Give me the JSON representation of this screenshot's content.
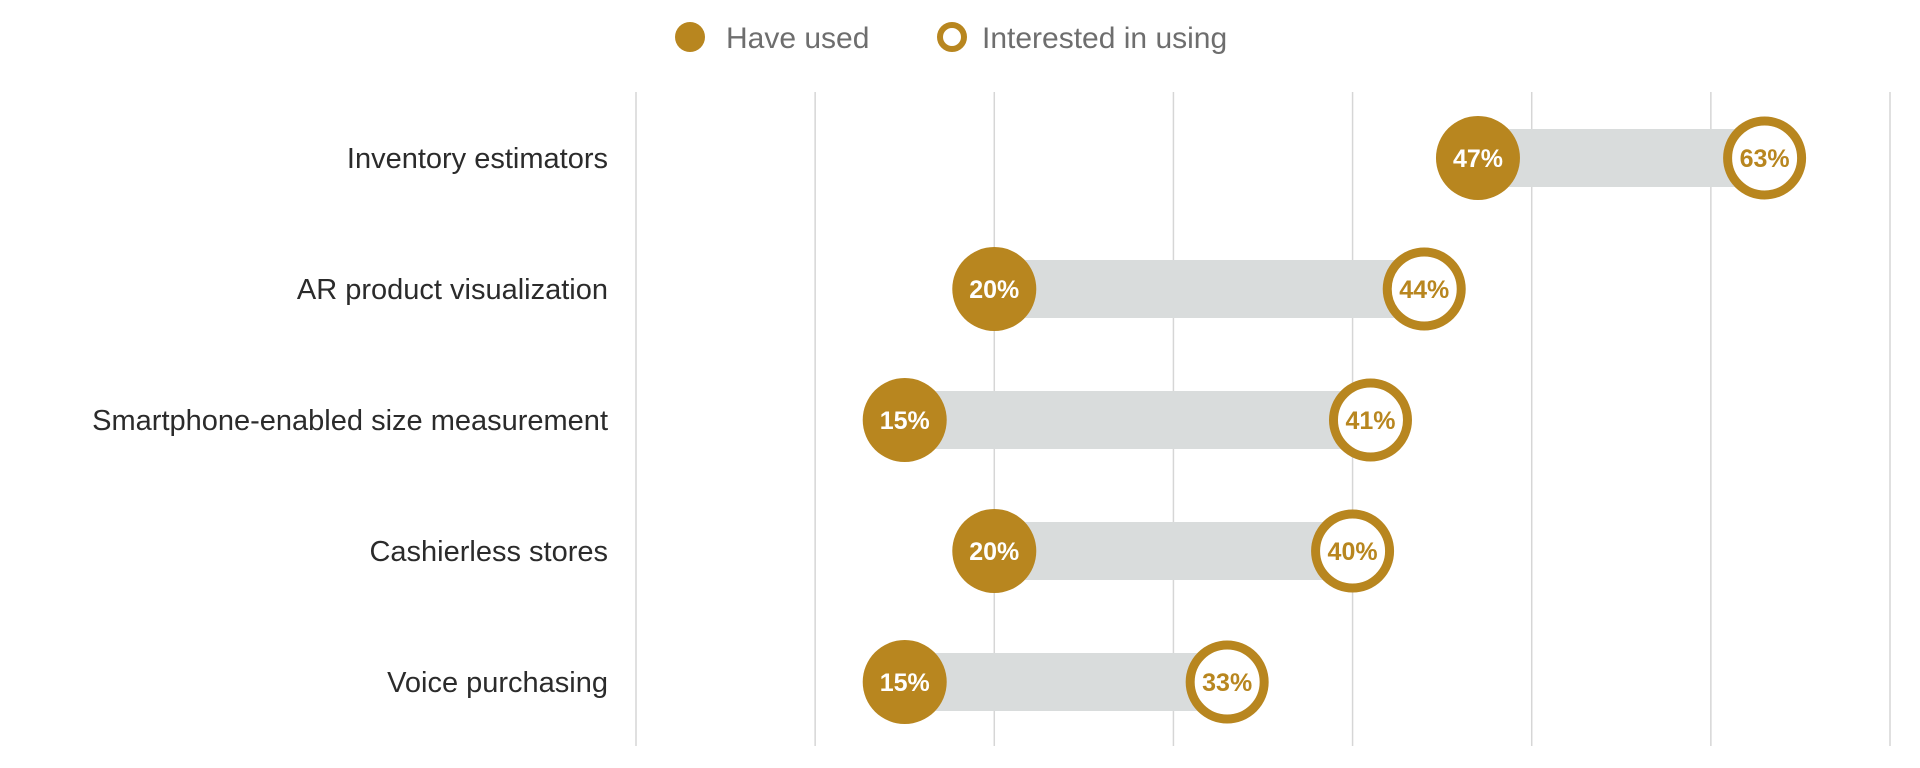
{
  "chart_data": {
    "type": "dumbbell",
    "title": "",
    "xlabel": "",
    "ylabel": "",
    "xlim": [
      0,
      70
    ],
    "grid": true,
    "legend_position": "top-center",
    "series": [
      {
        "name": "Have used",
        "marker": "filled-circle"
      },
      {
        "name": "Interested in using",
        "marker": "hollow-circle"
      }
    ],
    "categories": [
      "Inventory estimators",
      "AR product visualization",
      "Smartphone-enabled size measurement",
      "Cashierless stores",
      "Voice purchasing"
    ],
    "rows": [
      {
        "category": "Inventory estimators",
        "have_used": 47,
        "interested": 63,
        "have_used_label": "47%",
        "interested_label": "63%"
      },
      {
        "category": "AR product visualization",
        "have_used": 20,
        "interested": 44,
        "have_used_label": "20%",
        "interested_label": "44%"
      },
      {
        "category": "Smartphone-enabled size measurement",
        "have_used": 15,
        "interested": 41,
        "have_used_label": "15%",
        "interested_label": "41%"
      },
      {
        "category": "Cashierless stores",
        "have_used": 20,
        "interested": 40,
        "have_used_label": "20%",
        "interested_label": "40%"
      },
      {
        "category": "Voice purchasing",
        "have_used": 15,
        "interested": 33,
        "have_used_label": "15%",
        "interested_label": "33%"
      }
    ],
    "colors": {
      "accent": "#b8861f",
      "connector": "#d9dcdc",
      "grid": "#d6d6d6",
      "label": "#2b2b2b",
      "legend_text": "#6e6e6e"
    }
  }
}
